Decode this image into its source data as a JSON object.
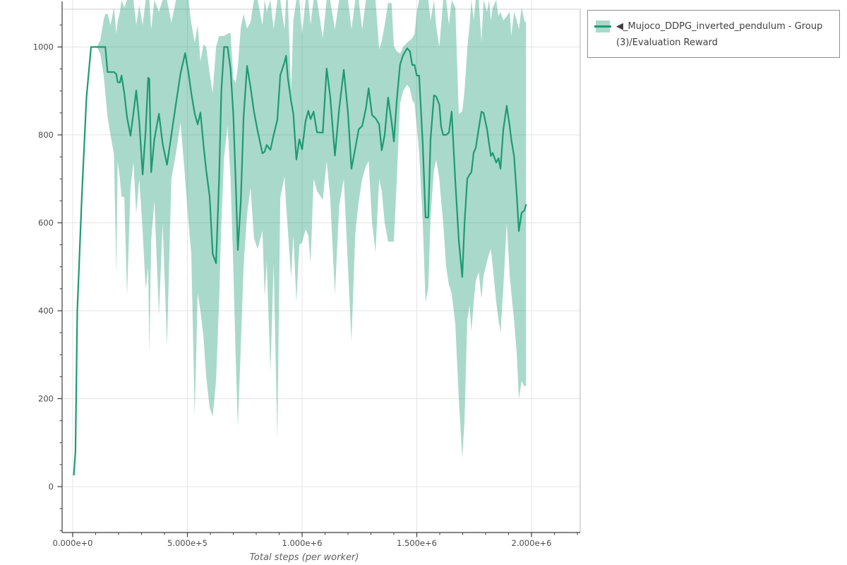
{
  "figure": {
    "xlabel": "Total steps (per worker)",
    "legend": {
      "full_label": "◀_Mujoco_DDPG_inverted_pendulum - Group(3)/Evaluation Reward"
    },
    "colors": {
      "line": "#1d9a74",
      "band": "rgba(29,154,116,0.38)",
      "grid": "#e4e4e4",
      "spine_dark": "#3c3c3c",
      "spine_light": "#cfcfcf",
      "tick": "#3c3c3c",
      "tick_label": "#4b4b4b",
      "axis_title": "#5f5f5f"
    }
  },
  "chart_data": {
    "type": "line",
    "title": "",
    "xlabel": "Total steps (per worker)",
    "ylabel": "",
    "legend_position": "outside-top-right",
    "grid": true,
    "xlim_steps": [
      -46000,
      2212000
    ],
    "ylim": [
      -104,
      1100
    ],
    "x_ticks": [
      {
        "steps": 0,
        "label": "0.000e+0"
      },
      {
        "steps": 500000,
        "label": "5.000e+5"
      },
      {
        "steps": 1000000,
        "label": "1.000e+6"
      },
      {
        "steps": 1500000,
        "label": "1.500e+6"
      },
      {
        "steps": 2000000,
        "label": "2.000e+6"
      }
    ],
    "x_minor_step": 100000,
    "y_ticks": [
      {
        "value": 0,
        "label": "0"
      },
      {
        "value": 200,
        "label": "200"
      },
      {
        "value": 400,
        "label": "400"
      },
      {
        "value": 600,
        "label": "600"
      },
      {
        "value": 800,
        "label": "800"
      },
      {
        "value": 1000,
        "label": "1000"
      }
    ],
    "y_minor_step": 50,
    "series": [
      {
        "name": "◀_Mujoco_DDPG_inverted_pendulum - Group(3)/Evaluation Reward",
        "kind": "mean-with-band",
        "points": [
          [
            5000,
            27,
            null,
            null
          ],
          [
            12000,
            80,
            null,
            null
          ],
          [
            20000,
            400,
            null,
            null
          ],
          [
            40000,
            663,
            null,
            null
          ],
          [
            60000,
            885,
            null,
            null
          ],
          [
            80000,
            1000,
            null,
            null
          ],
          [
            105000,
            1000,
            1000,
            1000
          ],
          [
            120000,
            1000,
            985,
            1015
          ],
          [
            135000,
            1000,
            935,
            1062
          ],
          [
            142000,
            1000,
            895,
            1075
          ],
          [
            152000,
            943,
            840,
            1075
          ],
          [
            165000,
            943,
            800,
            1050
          ],
          [
            180000,
            943,
            755,
            1090
          ],
          [
            190000,
            938,
            480,
            1030
          ],
          [
            196000,
            920,
            740,
            1058
          ],
          [
            206000,
            919,
            700,
            1080
          ],
          [
            213000,
            935,
            660,
            1107
          ],
          [
            225000,
            895,
            658,
            1090
          ],
          [
            237000,
            840,
            435,
            1107
          ],
          [
            252000,
            798,
            680,
            1107
          ],
          [
            265000,
            850,
            738,
            1107
          ],
          [
            277000,
            901,
            620,
            1050
          ],
          [
            290000,
            830,
            700,
            1095
          ],
          [
            305000,
            710,
            580,
            1050
          ],
          [
            318000,
            810,
            450,
            1107
          ],
          [
            329000,
            930,
            500,
            1107
          ],
          [
            334000,
            928,
            300,
            1107
          ],
          [
            342000,
            715,
            560,
            1040
          ],
          [
            356000,
            790,
            650,
            1107
          ],
          [
            376000,
            848,
            390,
            1080
          ],
          [
            392000,
            780,
            600,
            1107
          ],
          [
            411000,
            732,
            320,
            1107
          ],
          [
            430000,
            800,
            700,
            1055
          ],
          [
            450000,
            871,
            758,
            1107
          ],
          [
            470000,
            940,
            828,
            1107
          ],
          [
            490000,
            986,
            700,
            1107
          ],
          [
            505000,
            940,
            600,
            1107
          ],
          [
            517000,
            895,
            530,
            1054
          ],
          [
            532000,
            848,
            160,
            1010
          ],
          [
            545000,
            824,
            440,
            1050
          ],
          [
            557000,
            851,
            400,
            967
          ],
          [
            570000,
            777,
            340,
            1006
          ],
          [
            582000,
            720,
            250,
            1000
          ],
          [
            597000,
            660,
            180,
            940
          ],
          [
            610000,
            530,
            160,
            895
          ],
          [
            625000,
            508,
            240,
            1000
          ],
          [
            638000,
            700,
            420,
            1025
          ],
          [
            648000,
            900,
            600,
            1025
          ],
          [
            660000,
            1000,
            750,
            1025
          ],
          [
            675000,
            1000,
            820,
            1030
          ],
          [
            688000,
            950,
            700,
            1032
          ],
          [
            700000,
            848,
            500,
            929
          ],
          [
            710000,
            700,
            300,
            918
          ],
          [
            720000,
            538,
            135,
            956
          ],
          [
            733000,
            650,
            320,
            1045
          ],
          [
            745000,
            840,
            500,
            1075
          ],
          [
            760000,
            957,
            620,
            1042
          ],
          [
            775000,
            909,
            680,
            1056
          ],
          [
            790000,
            853,
            566,
            1107
          ],
          [
            806000,
            810,
            540,
            1107
          ],
          [
            827000,
            758,
            582,
            1050
          ],
          [
            837000,
            762,
            432,
            1107
          ],
          [
            846000,
            777,
            513,
            1080
          ],
          [
            862000,
            766,
            259,
            1107
          ],
          [
            876000,
            800,
            508,
            1040
          ],
          [
            892000,
            834,
            106,
            1107
          ],
          [
            905000,
            936,
            657,
            1107
          ],
          [
            923000,
            965,
            705,
            1040
          ],
          [
            930000,
            980,
            640,
            1107
          ],
          [
            938000,
            930,
            585,
            1107
          ],
          [
            952000,
            877,
            475,
            900
          ],
          [
            962000,
            848,
            572,
            1060
          ],
          [
            975000,
            744,
            420,
            1107
          ],
          [
            988000,
            790,
            550,
            1107
          ],
          [
            1000000,
            767,
            555,
            1030
          ],
          [
            1015000,
            831,
            585,
            1107
          ],
          [
            1027000,
            855,
            571,
            1107
          ],
          [
            1037000,
            836,
            508,
            1050
          ],
          [
            1050000,
            853,
            700,
            1107
          ],
          [
            1065000,
            806,
            673,
            1107
          ],
          [
            1090000,
            805,
            652,
            1020
          ],
          [
            1107000,
            951,
            740,
            1107
          ],
          [
            1122000,
            889,
            660,
            1107
          ],
          [
            1143000,
            753,
            437,
            1040
          ],
          [
            1162000,
            860,
            640,
            1107
          ],
          [
            1182000,
            948,
            700,
            1107
          ],
          [
            1200000,
            850,
            500,
            1107
          ],
          [
            1215000,
            723,
            330,
            1040
          ],
          [
            1232000,
            770,
            577,
            1107
          ],
          [
            1247000,
            813,
            650,
            1107
          ],
          [
            1262000,
            820,
            700,
            1040
          ],
          [
            1278000,
            860,
            729,
            1107
          ],
          [
            1290000,
            906,
            740,
            1107
          ],
          [
            1305000,
            845,
            600,
            1107
          ],
          [
            1320000,
            838,
            533,
            1107
          ],
          [
            1336000,
            824,
            700,
            995
          ],
          [
            1347000,
            765,
            673,
            1013
          ],
          [
            1360000,
            800,
            600,
            1050
          ],
          [
            1375000,
            885,
            557,
            1100
          ],
          [
            1390000,
            830,
            557,
            1100
          ],
          [
            1400000,
            785,
            557,
            1002
          ],
          [
            1413000,
            880,
            700,
            990
          ],
          [
            1427000,
            960,
            871,
            985
          ],
          [
            1440000,
            981,
            900,
            1000
          ],
          [
            1458000,
            997,
            914,
            1010
          ],
          [
            1470000,
            990,
            905,
            1015
          ],
          [
            1480000,
            959,
            880,
            1020
          ],
          [
            1490000,
            959,
            871,
            1030
          ],
          [
            1500000,
            935,
            818,
            1080
          ],
          [
            1510000,
            935,
            759,
            1107
          ],
          [
            1526000,
            777,
            600,
            1107
          ],
          [
            1538000,
            612,
            419,
            1107
          ],
          [
            1550000,
            612,
            453,
            1107
          ],
          [
            1560000,
            790,
            614,
            1060
          ],
          [
            1575000,
            890,
            721,
            1107
          ],
          [
            1585000,
            887,
            743,
            1045
          ],
          [
            1598000,
            869,
            700,
            1000
          ],
          [
            1606000,
            818,
            650,
            1050
          ],
          [
            1615000,
            800,
            600,
            1107
          ],
          [
            1628000,
            800,
            500,
            1107
          ],
          [
            1640000,
            805,
            459,
            1050
          ],
          [
            1652000,
            853,
            440,
            1107
          ],
          [
            1668000,
            694,
            368,
            1090
          ],
          [
            1683000,
            560,
            200,
            847
          ],
          [
            1698000,
            477,
            65,
            853
          ],
          [
            1708000,
            598,
            150,
            900
          ],
          [
            1720000,
            700,
            379,
            995
          ],
          [
            1730000,
            710,
            413,
            1050
          ],
          [
            1738000,
            715,
            352,
            1107
          ],
          [
            1748000,
            760,
            420,
            1060
          ],
          [
            1757000,
            770,
            467,
            1107
          ],
          [
            1770000,
            815,
            488,
            1107
          ],
          [
            1782000,
            853,
            427,
            1010
          ],
          [
            1791000,
            850,
            480,
            1107
          ],
          [
            1806000,
            813,
            512,
            1080
          ],
          [
            1815000,
            780,
            530,
            1107
          ],
          [
            1823000,
            752,
            540,
            1060
          ],
          [
            1831000,
            759,
            500,
            1090
          ],
          [
            1846000,
            737,
            420,
            1107
          ],
          [
            1856000,
            747,
            380,
            1070
          ],
          [
            1865000,
            723,
            350,
            1080
          ],
          [
            1877000,
            811,
            450,
            1060
          ],
          [
            1892000,
            866,
            600,
            1070
          ],
          [
            1905000,
            820,
            480,
            1080
          ],
          [
            1912000,
            789,
            440,
            1025
          ],
          [
            1924000,
            752,
            380,
            1080
          ],
          [
            1936000,
            660,
            300,
            1060
          ],
          [
            1945000,
            581,
            199,
            1040
          ],
          [
            1957000,
            623,
            240,
            1090
          ],
          [
            1969000,
            628,
            228,
            1060
          ],
          [
            1976000,
            641,
            230,
            1055
          ]
        ]
      }
    ]
  }
}
